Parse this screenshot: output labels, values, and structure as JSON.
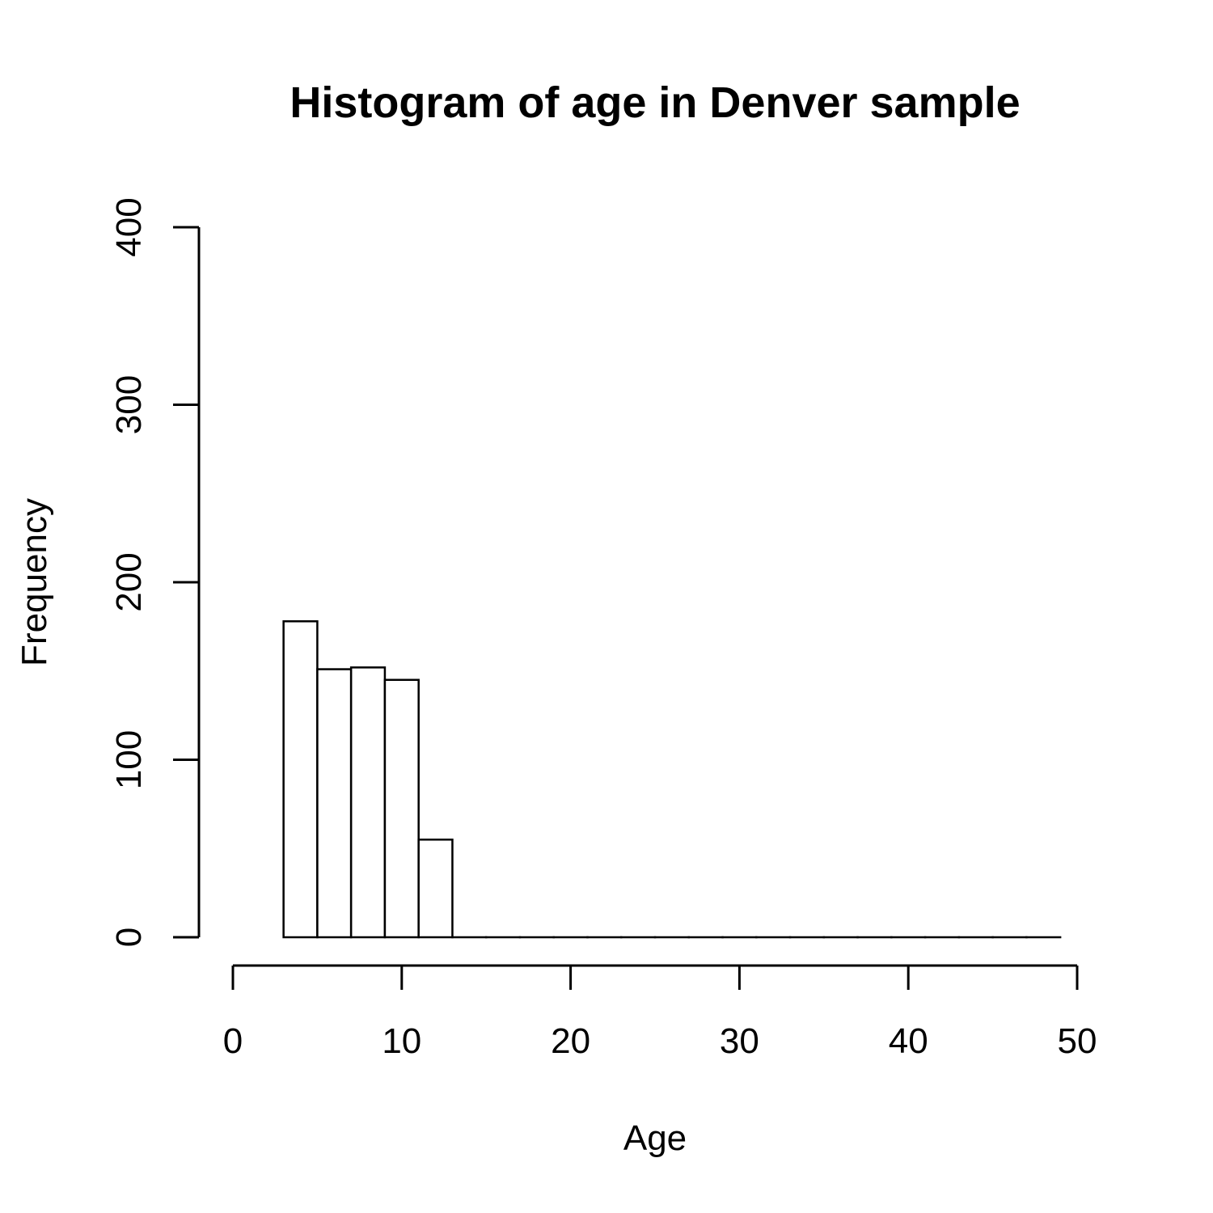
{
  "chart_data": {
    "type": "bar",
    "title": "Histogram of age in Denver sample",
    "xlabel": "Age",
    "ylabel": "Frequency",
    "xlim": [
      0,
      50
    ],
    "ylim": [
      0,
      400
    ],
    "x_ticks": [
      "0",
      "10",
      "20",
      "30",
      "40",
      "50"
    ],
    "y_ticks": [
      "0",
      "100",
      "200",
      "300",
      "400"
    ],
    "grid": false,
    "bins": [
      {
        "from": 3,
        "to": 5,
        "value": 178
      },
      {
        "from": 5,
        "to": 7,
        "value": 151
      },
      {
        "from": 7,
        "to": 9,
        "value": 152
      },
      {
        "from": 9,
        "to": 11,
        "value": 145
      },
      {
        "from": 11,
        "to": 13,
        "value": 55
      },
      {
        "from": 13,
        "to": 15,
        "value": 0
      },
      {
        "from": 15,
        "to": 17,
        "value": 0
      },
      {
        "from": 17,
        "to": 19,
        "value": 0
      },
      {
        "from": 19,
        "to": 21,
        "value": 0
      },
      {
        "from": 21,
        "to": 23,
        "value": 0
      },
      {
        "from": 23,
        "to": 25,
        "value": 0
      },
      {
        "from": 25,
        "to": 27,
        "value": 0
      },
      {
        "from": 27,
        "to": 29,
        "value": 0
      },
      {
        "from": 29,
        "to": 31,
        "value": 0
      },
      {
        "from": 31,
        "to": 33,
        "value": 0
      },
      {
        "from": 33,
        "to": 35,
        "value": 0
      },
      {
        "from": 35,
        "to": 37,
        "value": 0
      },
      {
        "from": 37,
        "to": 39,
        "value": 0
      },
      {
        "from": 39,
        "to": 41,
        "value": 0
      },
      {
        "from": 41,
        "to": 43,
        "value": 0
      },
      {
        "from": 43,
        "to": 45,
        "value": 0
      },
      {
        "from": 45,
        "to": 47,
        "value": 0
      },
      {
        "from": 47,
        "to": 49,
        "value": 0
      }
    ]
  }
}
